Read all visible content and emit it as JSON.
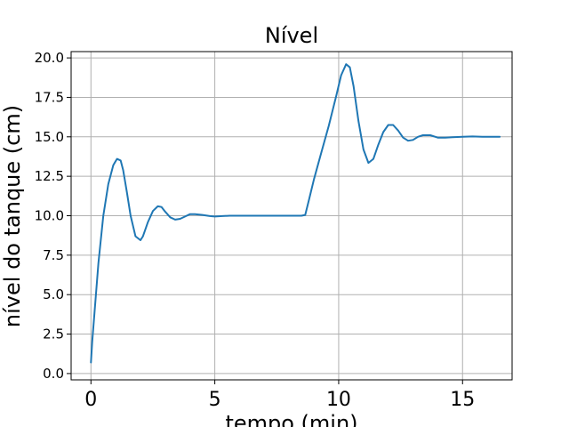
{
  "chart_data": {
    "type": "line",
    "title": "Nível",
    "xlabel": "tempo (min)",
    "ylabel": "nível do tanque (cm)",
    "xlim": [
      -0.8,
      17.0
    ],
    "ylim": [
      -0.4,
      20.4
    ],
    "xticks": [
      0,
      5,
      10,
      15
    ],
    "yticks": [
      0.0,
      2.5,
      5.0,
      7.5,
      10.0,
      12.5,
      15.0,
      17.5,
      20.0
    ],
    "xtick_labels": [
      "0",
      "5",
      "10",
      "15"
    ],
    "ytick_labels": [
      "0.0",
      "2.5",
      "5.0",
      "7.5",
      "10.0",
      "12.5",
      "15.0",
      "17.5",
      "20.0"
    ],
    "grid": true,
    "colors": {
      "series": "#1f77b4",
      "grid": "#b0b0b0",
      "axes": "#000000"
    },
    "series": [
      {
        "x": [
          0.0,
          0.05,
          0.15,
          0.3,
          0.5,
          0.7,
          0.9,
          1.05,
          1.2,
          1.3,
          1.45,
          1.6,
          1.8,
          2.0,
          2.1,
          2.3,
          2.5,
          2.7,
          2.85,
          3.0,
          3.2,
          3.4,
          3.6,
          3.8,
          4.0,
          4.2,
          4.5,
          4.8,
          5.0,
          5.3,
          5.6,
          6.0,
          7.0,
          8.0,
          8.5,
          8.65,
          8.8,
          9.0,
          9.3,
          9.6,
          9.9,
          10.1,
          10.3,
          10.45,
          10.6,
          10.8,
          11.0,
          11.2,
          11.4,
          11.6,
          11.8,
          12.0,
          12.2,
          12.4,
          12.6,
          12.8,
          13.0,
          13.2,
          13.4,
          13.7,
          14.0,
          14.3,
          14.6,
          15.0,
          15.4,
          15.8,
          16.2,
          16.5
        ],
        "y": [
          0.7,
          2.0,
          4.0,
          7.0,
          10.0,
          12.0,
          13.2,
          13.6,
          13.5,
          12.9,
          11.5,
          10.0,
          8.7,
          8.45,
          8.7,
          9.6,
          10.3,
          10.6,
          10.55,
          10.25,
          9.9,
          9.75,
          9.8,
          9.95,
          10.1,
          10.1,
          10.05,
          9.98,
          9.95,
          9.98,
          10.0,
          10.0,
          10.0,
          10.0,
          10.0,
          10.05,
          11.0,
          12.3,
          14.0,
          15.7,
          17.6,
          18.9,
          19.6,
          19.4,
          18.2,
          16.0,
          14.2,
          13.35,
          13.6,
          14.5,
          15.3,
          15.75,
          15.75,
          15.4,
          14.95,
          14.75,
          14.8,
          15.0,
          15.1,
          15.1,
          14.95,
          14.95,
          14.98,
          15.0,
          15.02,
          15.0,
          15.0,
          15.0
        ]
      }
    ]
  }
}
